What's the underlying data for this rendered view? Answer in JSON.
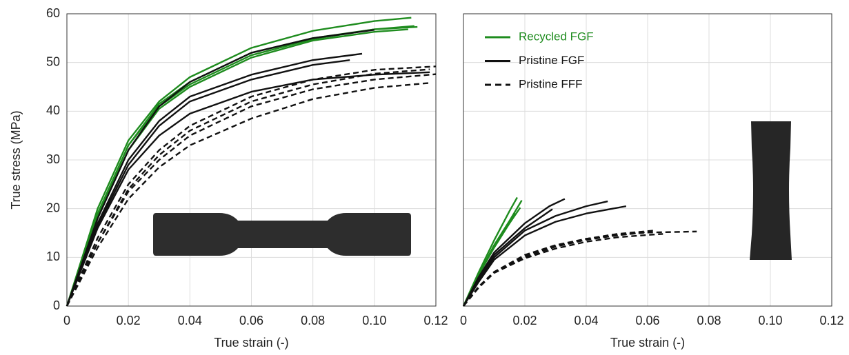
{
  "chart_data": [
    {
      "type": "line",
      "xlabel": "True strain (-)",
      "ylabel": "True stress (MPa)",
      "xlim": [
        0,
        0.12
      ],
      "ylim": [
        0,
        60
      ],
      "xticks": [
        0,
        0.02,
        0.04,
        0.06,
        0.08,
        {
          "value": 0.1,
          "label": "0.10"
        },
        0.12
      ],
      "yticks": [
        0,
        10,
        20,
        30,
        40,
        50,
        60
      ],
      "ytick_labels": true,
      "grid": true,
      "series": [
        {
          "color": "#1e8c1e",
          "dashed": false,
          "curves": [
            {
              "x": [
                0,
                0.005,
                0.01,
                0.02,
                0.03,
                0.04,
                0.06,
                0.08,
                0.1,
                0.112
              ],
              "values": [
                0,
                10,
                20,
                34,
                42,
                47,
                53,
                56.5,
                58.5,
                59.2
              ]
            },
            {
              "x": [
                0,
                0.005,
                0.01,
                0.02,
                0.03,
                0.04,
                0.06,
                0.08,
                0.1,
                0.113
              ],
              "values": [
                0,
                9.5,
                19,
                33,
                41.5,
                46,
                52,
                55,
                56.8,
                57.5
              ]
            },
            {
              "x": [
                0,
                0.005,
                0.01,
                0.02,
                0.03,
                0.04,
                0.06,
                0.08,
                0.1,
                0.114
              ],
              "values": [
                0,
                9,
                18.5,
                33,
                41,
                45.5,
                51.5,
                54.8,
                56.8,
                57.3
              ]
            },
            {
              "x": [
                0,
                0.005,
                0.01,
                0.02,
                0.03,
                0.04,
                0.06,
                0.08,
                0.1,
                0.111
              ],
              "values": [
                0,
                9,
                18,
                32,
                40.5,
                45,
                51,
                54.5,
                56.3,
                56.8
              ]
            }
          ]
        },
        {
          "color": "#111111",
          "dashed": false,
          "curves": [
            {
              "x": [
                0,
                0.005,
                0.01,
                0.02,
                0.03,
                0.04,
                0.06,
                0.08,
                0.1
              ],
              "values": [
                0,
                9,
                18,
                32,
                41,
                46,
                52,
                55,
                56.7
              ]
            },
            {
              "x": [
                0,
                0.005,
                0.01,
                0.02,
                0.03,
                0.04,
                0.06,
                0.08,
                0.096
              ],
              "values": [
                0,
                8.5,
                17,
                30,
                38,
                43,
                47.5,
                50.5,
                51.8
              ]
            },
            {
              "x": [
                0,
                0.005,
                0.01,
                0.02,
                0.03,
                0.04,
                0.06,
                0.08,
                0.092
              ],
              "values": [
                0,
                8.5,
                16.5,
                29,
                37,
                42,
                46.5,
                49.5,
                50.5
              ]
            },
            {
              "x": [
                0,
                0.005,
                0.01,
                0.02,
                0.03,
                0.04,
                0.06,
                0.08,
                0.1,
                0.118
              ],
              "values": [
                0,
                8,
                16,
                28,
                35,
                39.5,
                44,
                46.5,
                47.5,
                48
              ]
            }
          ]
        },
        {
          "color": "#111111",
          "dashed": true,
          "curves": [
            {
              "x": [
                0,
                0.005,
                0.01,
                0.02,
                0.03,
                0.04,
                0.06,
                0.08,
                0.1,
                0.12
              ],
              "values": [
                0,
                7,
                14,
                25,
                32,
                37,
                43,
                46.5,
                48.5,
                49.2
              ]
            },
            {
              "x": [
                0,
                0.005,
                0.01,
                0.02,
                0.03,
                0.04,
                0.06,
                0.08,
                0.1,
                0.118
              ],
              "values": [
                0,
                6.5,
                13,
                24,
                31,
                36,
                42,
                45.5,
                47.7,
                48.6
              ]
            },
            {
              "x": [
                0,
                0.005,
                0.01,
                0.02,
                0.03,
                0.04,
                0.06,
                0.08,
                0.1,
                0.12
              ],
              "values": [
                0,
                6.5,
                13,
                23.5,
                30,
                35,
                41,
                44.5,
                46.5,
                47.6
              ]
            },
            {
              "x": [
                0,
                0.005,
                0.01,
                0.02,
                0.03,
                0.04,
                0.06,
                0.08,
                0.1,
                0.118
              ],
              "values": [
                0,
                6,
                12,
                22,
                28.5,
                33,
                38.5,
                42.5,
                44.8,
                45.8
              ]
            }
          ]
        }
      ]
    },
    {
      "type": "line",
      "xlabel": "True strain (-)",
      "xlim": [
        0,
        0.12
      ],
      "ylim": [
        0,
        60
      ],
      "xticks": [
        0,
        0.02,
        0.04,
        0.06,
        0.08,
        {
          "value": 0.1,
          "label": "0.10"
        },
        0.12
      ],
      "yticks": [
        0,
        10,
        20,
        30,
        40,
        50,
        60
      ],
      "ytick_labels": false,
      "grid": true,
      "legend": "upper left",
      "series": [
        {
          "name": "Recycled FGF",
          "color": "#1e8c1e",
          "dashed": false,
          "curves": [
            {
              "x": [
                0,
                0.005,
                0.01,
                0.015,
                0.0175
              ],
              "values": [
                0,
                7,
                13.5,
                19.5,
                22.3
              ]
            },
            {
              "x": [
                0,
                0.005,
                0.01,
                0.015,
                0.019
              ],
              "values": [
                0,
                6.5,
                12.5,
                17.5,
                21.7
              ]
            },
            {
              "x": [
                0,
                0.005,
                0.01,
                0.015,
                0.0185
              ],
              "values": [
                0,
                6.5,
                12.5,
                17,
                20.2
              ]
            },
            {
              "x": [
                0,
                0.005,
                0.01,
                0.015,
                0.017
              ],
              "values": [
                0,
                6.5,
                12,
                17,
                19
              ]
            }
          ]
        },
        {
          "name": "Pristine FGF",
          "color": "#111111",
          "dashed": false,
          "curves": [
            {
              "x": [
                0,
                0.005,
                0.01,
                0.02,
                0.028,
                0.033
              ],
              "values": [
                0,
                6,
                11,
                17,
                20.5,
                22
              ]
            },
            {
              "x": [
                0,
                0.005,
                0.01,
                0.02,
                0.03,
                0.04,
                0.047
              ],
              "values": [
                0,
                5.5,
                10,
                15.5,
                18.5,
                20.5,
                21.5
              ]
            },
            {
              "x": [
                0,
                0.005,
                0.01,
                0.02,
                0.03,
                0.04,
                0.053
              ],
              "values": [
                0,
                5,
                9.5,
                14.5,
                17.3,
                19,
                20.5
              ]
            },
            {
              "x": [
                0,
                0.005,
                0.01,
                0.02,
                0.029
              ],
              "values": [
                0,
                5.5,
                10.5,
                16,
                19.9
              ]
            }
          ]
        },
        {
          "name": "Pristine FFF",
          "color": "#111111",
          "dashed": true,
          "curves": [
            {
              "x": [
                0,
                0.005,
                0.01,
                0.02,
                0.03,
                0.04,
                0.05,
                0.06,
                0.076
              ],
              "values": [
                0,
                4,
                7,
                10.5,
                12.5,
                13.8,
                14.6,
                15.1,
                15.3
              ]
            },
            {
              "x": [
                0,
                0.005,
                0.01,
                0.02,
                0.03,
                0.04,
                0.05,
                0.062
              ],
              "values": [
                0,
                4,
                7,
                10.3,
                12.4,
                13.8,
                14.8,
                15.5
              ]
            },
            {
              "x": [
                0,
                0.005,
                0.01,
                0.02,
                0.03,
                0.04,
                0.05,
                0.06
              ],
              "values": [
                0,
                4,
                7,
                10,
                12.2,
                13.6,
                14.5,
                15.2
              ]
            },
            {
              "x": [
                0,
                0.005,
                0.01,
                0.02,
                0.03,
                0.04,
                0.05,
                0.06,
                0.065
              ],
              "values": [
                0,
                3.8,
                6.8,
                9.8,
                11.8,
                13.2,
                14.1,
                14.6,
                14.8
              ]
            }
          ]
        }
      ]
    }
  ]
}
